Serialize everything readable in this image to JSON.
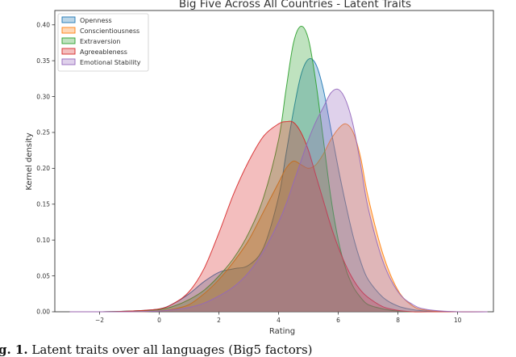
{
  "chart_data": {
    "type": "area",
    "title": "Big Five Across All Countries - Latent Traits",
    "xlabel": "Rating",
    "ylabel": "Kernel density",
    "xlim": [
      -3.5,
      11.2
    ],
    "ylim": [
      0,
      0.42
    ],
    "xticks": [
      -2,
      0,
      2,
      4,
      6,
      8,
      10
    ],
    "yticks": [
      0.0,
      0.05,
      0.1,
      0.15,
      0.2,
      0.25,
      0.3,
      0.35,
      0.4
    ],
    "grid": false,
    "legend_position": "top-left",
    "x": [
      -3,
      -2,
      -1,
      0,
      0.5,
      1,
      1.5,
      2,
      2.5,
      3,
      3.5,
      4,
      4.25,
      4.5,
      4.75,
      5,
      5.25,
      5.5,
      5.75,
      6,
      6.25,
      6.5,
      6.75,
      7,
      7.5,
      8,
      8.5,
      9,
      10,
      11
    ],
    "series": [
      {
        "name": "Openness",
        "color": "#1f77b4",
        "values": [
          0.0,
          0.0,
          0.001,
          0.004,
          0.012,
          0.025,
          0.042,
          0.055,
          0.06,
          0.065,
          0.09,
          0.16,
          0.22,
          0.28,
          0.33,
          0.352,
          0.345,
          0.31,
          0.255,
          0.2,
          0.15,
          0.105,
          0.07,
          0.045,
          0.02,
          0.008,
          0.003,
          0.001,
          0.0,
          0.0
        ]
      },
      {
        "name": "Conscientiousness",
        "color": "#ff7f0e",
        "values": [
          0.0,
          0.0,
          0.0,
          0.001,
          0.004,
          0.01,
          0.025,
          0.045,
          0.07,
          0.1,
          0.14,
          0.18,
          0.2,
          0.21,
          0.205,
          0.2,
          0.205,
          0.22,
          0.24,
          0.255,
          0.262,
          0.25,
          0.215,
          0.16,
          0.08,
          0.03,
          0.008,
          0.002,
          0.0,
          0.0
        ]
      },
      {
        "name": "Extraversion",
        "color": "#2ca02c",
        "values": [
          0.0,
          0.0,
          0.001,
          0.003,
          0.008,
          0.017,
          0.03,
          0.05,
          0.075,
          0.11,
          0.16,
          0.24,
          0.31,
          0.375,
          0.398,
          0.38,
          0.32,
          0.24,
          0.16,
          0.1,
          0.06,
          0.035,
          0.02,
          0.01,
          0.004,
          0.001,
          0.0,
          0.0,
          0.0,
          0.0
        ]
      },
      {
        "name": "Agreeableness",
        "color": "#d62728",
        "values": [
          0.0,
          0.0,
          0.001,
          0.004,
          0.012,
          0.028,
          0.06,
          0.11,
          0.165,
          0.21,
          0.245,
          0.262,
          0.265,
          0.264,
          0.25,
          0.225,
          0.19,
          0.155,
          0.12,
          0.09,
          0.065,
          0.045,
          0.03,
          0.02,
          0.007,
          0.002,
          0.0,
          0.0,
          0.0,
          0.0
        ]
      },
      {
        "name": "Emotional Stability",
        "color": "#9467bd",
        "values": [
          0.0,
          0.0,
          0.0,
          0.001,
          0.003,
          0.006,
          0.012,
          0.022,
          0.035,
          0.055,
          0.085,
          0.125,
          0.15,
          0.18,
          0.21,
          0.24,
          0.265,
          0.285,
          0.305,
          0.31,
          0.295,
          0.26,
          0.205,
          0.145,
          0.07,
          0.028,
          0.01,
          0.003,
          0.0,
          0.0
        ]
      }
    ]
  },
  "caption": {
    "label": "g. 1.",
    "text": "Latent traits over all languages (Big5 factors)"
  }
}
